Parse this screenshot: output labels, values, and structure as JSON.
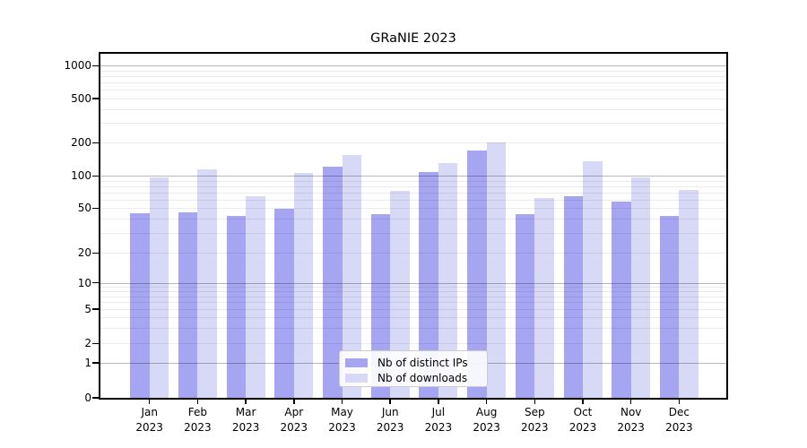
{
  "title": "GRaNIE 2023",
  "chart_data": {
    "type": "bar",
    "title": "GRaNIE 2023",
    "x_axis": {
      "months": [
        "Jan",
        "Feb",
        "Mar",
        "Apr",
        "May",
        "Jun",
        "Jul",
        "Aug",
        "Sep",
        "Oct",
        "Nov",
        "Dec"
      ],
      "year": "2023"
    },
    "y_axis": {
      "scale": "pseudo-log",
      "tick_values": [
        0,
        1,
        2,
        5,
        10,
        20,
        50,
        100,
        200,
        500,
        1000
      ],
      "major_grid_values": [
        1,
        10,
        100,
        1000
      ],
      "minor_grid_values": [
        2,
        3,
        4,
        5,
        6,
        7,
        8,
        9,
        20,
        30,
        40,
        50,
        60,
        70,
        80,
        90,
        200,
        300,
        400,
        500,
        600,
        700,
        800,
        900
      ]
    },
    "series": [
      {
        "name": "Nb of distinct IPs",
        "color": "#a5a5f2",
        "values": [
          45,
          46,
          43,
          49,
          122,
          44,
          108,
          170,
          44,
          65,
          58,
          43
        ]
      },
      {
        "name": "Nb of downloads",
        "color": "#d8d8f7",
        "values": [
          97,
          115,
          65,
          106,
          156,
          73,
          130,
          203,
          62,
          137,
          97,
          74
        ]
      }
    ],
    "legend_position": "bottom-center",
    "grid": true
  },
  "colors": {
    "axis": "#000000",
    "grid_major": "rgba(0,0,0,0.28)",
    "grid_minor": "rgba(0,0,0,0.08)",
    "legend_border": "#cccccc",
    "background": "#ffffff"
  }
}
